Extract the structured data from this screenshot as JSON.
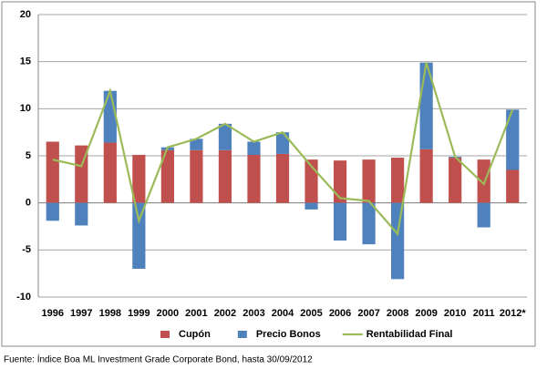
{
  "chart_data": {
    "type": "bar-line",
    "categories": [
      "1996",
      "1997",
      "1998",
      "1999",
      "2000",
      "2001",
      "2002",
      "2003",
      "2004",
      "2005",
      "2006",
      "2007",
      "2008",
      "2009",
      "2010",
      "2011",
      "2012*"
    ],
    "series": [
      {
        "name": "Cupón",
        "color": "#c0504d",
        "kind": "bar",
        "values": [
          6.5,
          6.1,
          6.4,
          5.1,
          5.6,
          5.6,
          5.6,
          5.1,
          5.2,
          4.6,
          4.5,
          4.6,
          4.8,
          5.7,
          4.8,
          4.6,
          3.5
        ]
      },
      {
        "name": "Precio Bonos",
        "color": "#4f81bd",
        "kind": "bar",
        "values": [
          -1.9,
          -2.4,
          5.5,
          -7.0,
          0.3,
          1.2,
          2.8,
          1.4,
          2.3,
          -0.7,
          -4.0,
          -4.4,
          -8.1,
          9.2,
          0.1,
          -2.6,
          6.4
        ]
      },
      {
        "name": "Rentabilidad Final",
        "color": "#9bbb59",
        "kind": "line",
        "values": [
          4.6,
          3.9,
          11.9,
          -1.9,
          5.9,
          6.8,
          8.4,
          6.5,
          7.5,
          3.9,
          0.5,
          0.2,
          -3.3,
          14.9,
          4.9,
          2.0,
          9.9
        ]
      }
    ],
    "ylim": [
      -10,
      20
    ],
    "yticks": [
      20,
      15,
      10,
      5,
      0,
      -5,
      -10
    ],
    "grid": true,
    "legend": "bottom",
    "source": "Fuente: Índice Boa ML Investment Grade Corporate Bond, hasta 30/09/2012"
  }
}
